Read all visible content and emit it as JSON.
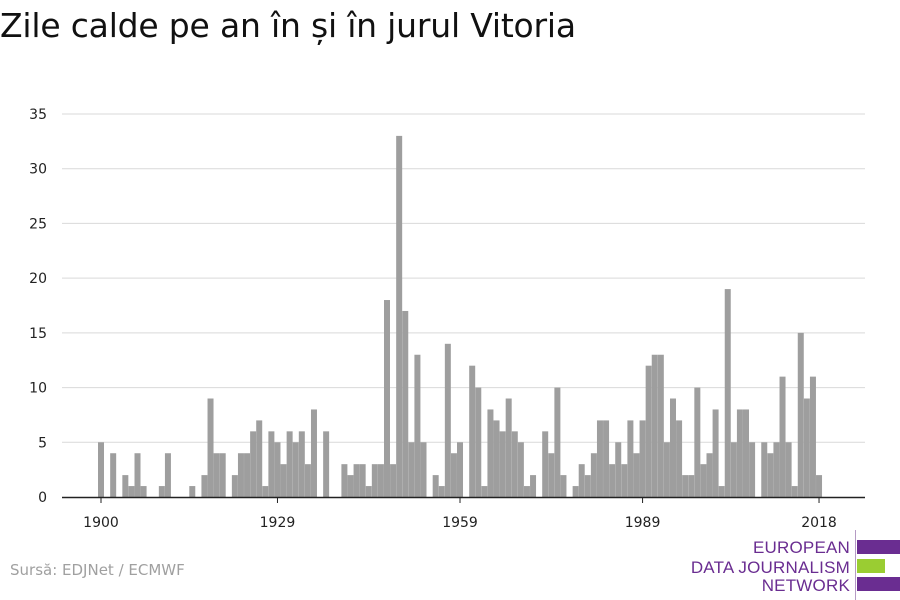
{
  "title": "Zile calde pe an în și în jurul Vitoria",
  "source": "Sursă: EDJNet / ECMWF",
  "logo": {
    "line1": "EUROPEAN",
    "line2": "DATA JOURNALISM",
    "line3": "NETWORK",
    "text_color": "#6a2d91",
    "bar_colors": [
      "#6a2d91",
      "#9acd32",
      "#6a2d91"
    ]
  },
  "colors": {
    "bar": "#9e9e9e",
    "grid": "#d9d9d9",
    "axis": "#222222",
    "tick_text": "#222222"
  },
  "chart_data": {
    "type": "bar",
    "title": "Zile calde pe an în și în jurul Vitoria",
    "xlabel": "",
    "ylabel": "",
    "ylim": [
      0,
      35
    ],
    "yticks": [
      "0",
      "5",
      "10",
      "15",
      "20",
      "25",
      "30",
      "35"
    ],
    "xticks": [
      "1900",
      "1929",
      "1959",
      "1989",
      "2018"
    ],
    "grid": true,
    "x": [
      1900,
      1901,
      1902,
      1903,
      1904,
      1905,
      1906,
      1907,
      1908,
      1909,
      1910,
      1911,
      1912,
      1913,
      1914,
      1915,
      1916,
      1917,
      1918,
      1919,
      1920,
      1921,
      1922,
      1923,
      1924,
      1925,
      1926,
      1927,
      1928,
      1929,
      1930,
      1931,
      1932,
      1933,
      1934,
      1935,
      1936,
      1937,
      1938,
      1939,
      1940,
      1941,
      1942,
      1943,
      1944,
      1945,
      1946,
      1947,
      1948,
      1949,
      1950,
      1951,
      1952,
      1953,
      1954,
      1955,
      1956,
      1957,
      1958,
      1959,
      1960,
      1961,
      1962,
      1963,
      1964,
      1965,
      1966,
      1967,
      1968,
      1969,
      1970,
      1971,
      1972,
      1973,
      1974,
      1975,
      1976,
      1977,
      1978,
      1979,
      1980,
      1981,
      1982,
      1983,
      1984,
      1985,
      1986,
      1987,
      1988,
      1989,
      1990,
      1991,
      1992,
      1993,
      1994,
      1995,
      1996,
      1997,
      1998,
      1999,
      2000,
      2001,
      2002,
      2003,
      2004,
      2005,
      2006,
      2007,
      2008,
      2009,
      2010,
      2011,
      2012,
      2013,
      2014,
      2015,
      2016,
      2017,
      2018
    ],
    "values": [
      5,
      0,
      4,
      0,
      2,
      1,
      4,
      1,
      0,
      0,
      1,
      4,
      0,
      0,
      0,
      1,
      0,
      2,
      9,
      4,
      4,
      0,
      2,
      4,
      4,
      6,
      7,
      1,
      6,
      5,
      3,
      6,
      5,
      6,
      3,
      8,
      0,
      6,
      0,
      0,
      3,
      2,
      3,
      3,
      1,
      3,
      3,
      18,
      3,
      33,
      17,
      5,
      13,
      5,
      0,
      2,
      1,
      14,
      4,
      5,
      0,
      12,
      10,
      1,
      8,
      7,
      6,
      9,
      6,
      5,
      1,
      2,
      0,
      6,
      4,
      10,
      2,
      0,
      1,
      3,
      2,
      4,
      7,
      7,
      3,
      5,
      3,
      7,
      4,
      7,
      12,
      13,
      13,
      5,
      9,
      7,
      2,
      2,
      10,
      3,
      4,
      8,
      1,
      19,
      5,
      8,
      8,
      5,
      0,
      5,
      4,
      5,
      11,
      5,
      1,
      15,
      9,
      11,
      2
    ]
  }
}
